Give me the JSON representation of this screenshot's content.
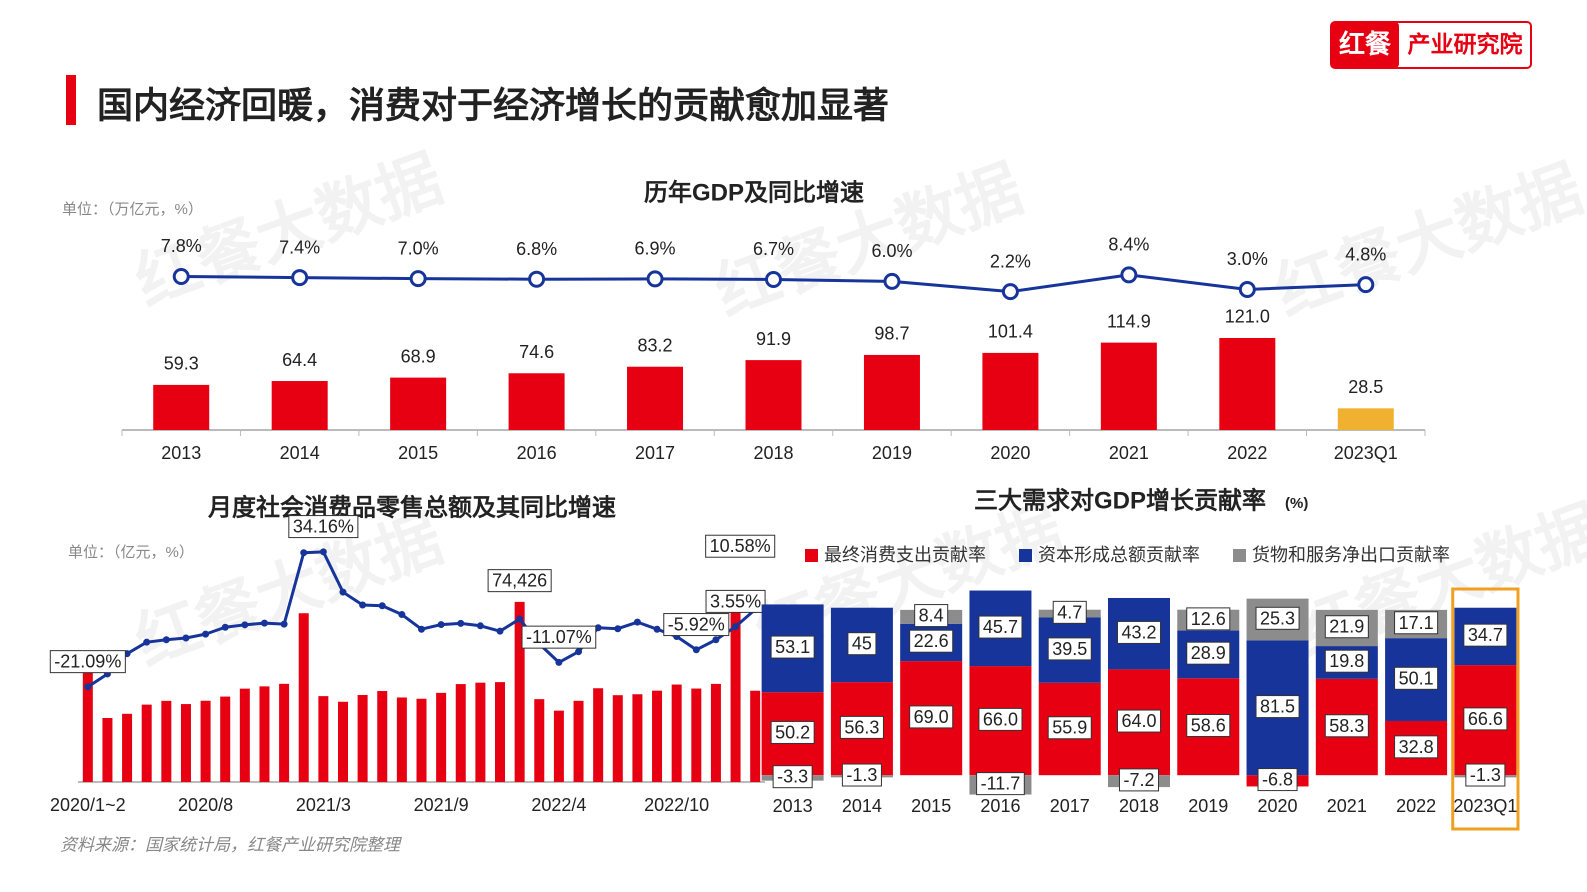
{
  "header": {
    "title": "国内经济回暖，消费对于经济增长的贡献愈加显著",
    "logo_mark": "红餐",
    "logo_text": "产业研究院"
  },
  "watermark": "红餐大数据",
  "source": "资料来源：国家统计局，红餐产业研究院整理",
  "chart_data": [
    {
      "type": "combo",
      "title": "历年GDP及同比增速",
      "unit": "单位：（万亿元，%）",
      "categories": [
        "2013",
        "2014",
        "2015",
        "2016",
        "2017",
        "2018",
        "2019",
        "2020",
        "2021",
        "2022",
        "2023Q1"
      ],
      "ylim": [
        0,
        263
      ],
      "y2lim": [
        -49,
        25
      ],
      "series": [
        {
          "type": "bar",
          "color": "#e60012",
          "colors": [
            "#e60012",
            "#e60012",
            "#e60012",
            "#e60012",
            "#e60012",
            "#e60012",
            "#e60012",
            "#e60012",
            "#e60012",
            "#e60012",
            "#f0b030"
          ],
          "values": [
            59.3,
            64.4,
            68.9,
            74.6,
            83.2,
            91.9,
            98.7,
            101.4,
            114.9,
            121.0,
            28.5
          ],
          "value_labels": [
            null,
            null,
            null,
            null,
            null,
            null,
            null,
            null,
            null,
            "121.0",
            null
          ]
        },
        {
          "type": "line",
          "axis": "y2",
          "color": "#17349a",
          "values": [
            7.8,
            7.4,
            7.0,
            6.8,
            6.9,
            6.7,
            6.0,
            2.2,
            8.4,
            3.0,
            4.8
          ],
          "value_labels": [
            "7.8%",
            "7.4%",
            "7.0%",
            "6.8%",
            "6.9%",
            "6.7%",
            "6.0%",
            "2.2%",
            "8.4%",
            "3.0%",
            "4.8%"
          ]
        }
      ]
    },
    {
      "type": "combo",
      "title": "月度社会消费品零售总额及其同比增速",
      "unit": "单位：（亿元，%）",
      "categories": [
        "2020/1~2",
        null,
        null,
        null,
        null,
        null,
        "2020/8",
        null,
        null,
        null,
        null,
        null,
        "2021/3",
        null,
        null,
        null,
        null,
        null,
        "2021/9",
        null,
        null,
        null,
        null,
        null,
        "2022/4",
        null,
        null,
        null,
        null,
        null,
        "2022/10",
        null,
        null,
        null,
        null
      ],
      "ylim": [
        0,
        100000
      ],
      "y2lim": [
        -60,
        39
      ],
      "series": [
        {
          "type": "bar",
          "color": "#e60012",
          "values": [
            52130,
            26450,
            28178,
            31973,
            33526,
            32203,
            33571,
            35295,
            38576,
            39514,
            40566,
            69737,
            35484,
            33153,
            35945,
            37586,
            34925,
            34395,
            36833,
            40454,
            41043,
            41269,
            74426,
            34233,
            29483,
            33547,
            38742,
            35870,
            36258,
            37745,
            40271,
            38615,
            40542,
            77067,
            37715
          ],
          "value_labels": [
            null,
            null,
            null,
            null,
            null,
            null,
            null,
            null,
            null,
            null,
            null,
            null,
            null,
            null,
            null,
            null,
            null,
            null,
            null,
            null,
            null,
            null,
            "74,426",
            null,
            null,
            null,
            null,
            null,
            null,
            null,
            null,
            null,
            null,
            null,
            null
          ]
        },
        {
          "type": "line",
          "axis": "y2",
          "color": "#17349a",
          "values": [
            -21.09,
            -15.8,
            -7.5,
            -2.8,
            -1.8,
            -1.1,
            0.5,
            3.3,
            4.3,
            5.0,
            4.6,
            33.8,
            34.16,
            17.7,
            12.4,
            12.1,
            8.5,
            2.5,
            4.4,
            4.9,
            3.9,
            1.7,
            6.7,
            -3.5,
            -11.07,
            -6.7,
            3.1,
            2.7,
            5.4,
            2.5,
            -0.5,
            -5.92,
            -1.8,
            3.55,
            10.58
          ],
          "value_labels": [
            "-21.09%",
            null,
            null,
            null,
            null,
            null,
            null,
            null,
            null,
            null,
            null,
            null,
            "34.16%",
            null,
            null,
            null,
            null,
            null,
            null,
            null,
            null,
            null,
            null,
            null,
            "-11.07%",
            null,
            null,
            null,
            null,
            null,
            null,
            "-5.92%",
            null,
            "3.55%",
            "10.58%"
          ]
        }
      ]
    },
    {
      "type": "stacked",
      "title": "三大需求对GDP增长贡献率",
      "unit": "(%)",
      "categories": [
        "2013",
        "2014",
        "2015",
        "2016",
        "2017",
        "2018",
        "2019",
        "2020",
        "2021",
        "2022",
        "2023Q1"
      ],
      "ylim": [
        -15,
        109
      ],
      "highlight": {
        "category_index": 10,
        "color": "#f0a020"
      },
      "series": [
        {
          "name": "最终消费支出贡献率",
          "color": "#e60012",
          "values": [
            50.2,
            56.3,
            69.0,
            66.0,
            55.9,
            64.0,
            58.6,
            -6.8,
            58.3,
            32.8,
            66.6
          ],
          "value_labels": [
            null,
            null,
            "69.0",
            "66.0",
            null,
            "64.0",
            null,
            null,
            null,
            null,
            null
          ]
        },
        {
          "name": "资本形成总额贡献率",
          "color": "#17349a",
          "values": [
            53.1,
            45,
            22.6,
            45.7,
            39.5,
            43.2,
            28.9,
            81.5,
            19.8,
            50.1,
            34.7
          ]
        },
        {
          "name": "货物和服务净出口贡献率",
          "color": "#8c8c8c",
          "values": [
            -3.3,
            -1.3,
            8.4,
            -11.7,
            4.7,
            -7.2,
            12.6,
            25.3,
            21.9,
            17.1,
            -1.3
          ]
        }
      ]
    }
  ]
}
